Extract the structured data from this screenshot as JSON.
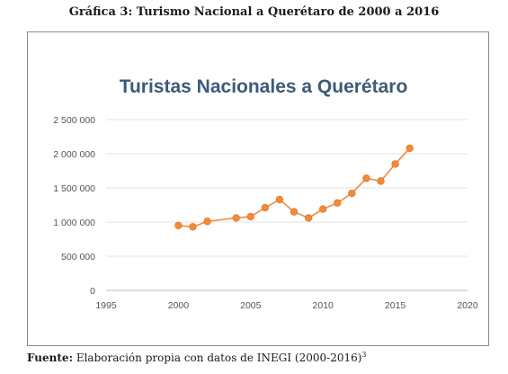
{
  "caption": "Gráfica 3: Turismo Nacional a Querétaro de 2000 a 2016",
  "source": {
    "label": "Fuente:",
    "text": "Elaboración propia con datos de INEGI (2000-2016)",
    "note": "3"
  },
  "chart_data": {
    "type": "scatter",
    "title": "Turistas Nacionales a Querétaro",
    "xlabel": "",
    "ylabel": "",
    "xlim": [
      1995,
      2020
    ],
    "ylim": [
      0,
      2500000
    ],
    "xticks": [
      1995,
      2000,
      2005,
      2010,
      2015,
      2020
    ],
    "yticks": [
      0,
      500000,
      1000000,
      1500000,
      2000000,
      2500000
    ],
    "ytick_labels": [
      "0",
      "500 000",
      "1 000 000",
      "1 500 000",
      "2 000 000",
      "2 500 000"
    ],
    "grid": true,
    "legend": false,
    "series_color": "#f08a3c",
    "marker_color": "#f08a3c",
    "series": [
      {
        "x": [
          2000,
          2001,
          2002,
          2004,
          2005,
          2006,
          2007,
          2008,
          2009,
          2010,
          2011,
          2012,
          2013,
          2014,
          2015,
          2016
        ],
        "y": [
          950000,
          930000,
          1010000,
          1060000,
          1080000,
          1210000,
          1330000,
          1150000,
          1060000,
          1190000,
          1280000,
          1420000,
          1640000,
          1600000,
          1850000,
          2080000
        ]
      }
    ]
  }
}
